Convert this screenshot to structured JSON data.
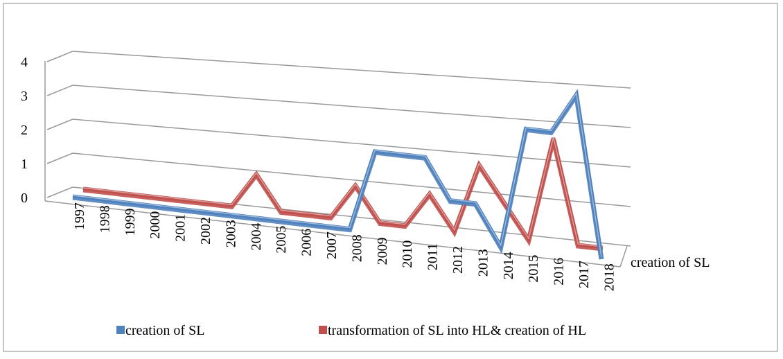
{
  "chart_data": {
    "type": "line3d",
    "categories": [
      "1997",
      "1998",
      "1999",
      "2000",
      "2001",
      "2002",
      "2003",
      "2004",
      "2005",
      "2006",
      "2007",
      "2008",
      "2009",
      "2010",
      "2011",
      "2012",
      "2013",
      "2014",
      "2015",
      "2016",
      "2017",
      "2018"
    ],
    "series": [
      {
        "name": "creation of SL",
        "color": "#4f81bd",
        "values": [
          0,
          0,
          0,
          0,
          0,
          0,
          0,
          0,
          0,
          0,
          0,
          0,
          2,
          2,
          2,
          1,
          1,
          0,
          3,
          3,
          4,
          0
        ]
      },
      {
        "name": "transformation of SL into HL& creation of HL",
        "color": "#c0504d",
        "values": [
          0,
          0,
          0,
          0,
          0,
          0,
          0,
          1,
          0,
          0,
          0,
          1,
          0,
          0,
          1,
          0,
          2,
          1,
          0,
          3,
          0,
          0
        ]
      }
    ],
    "depth_label": "creation of SL",
    "ylim": [
      0,
      4
    ],
    "yticks": [
      0,
      1,
      2,
      3,
      4
    ],
    "grid": true
  }
}
